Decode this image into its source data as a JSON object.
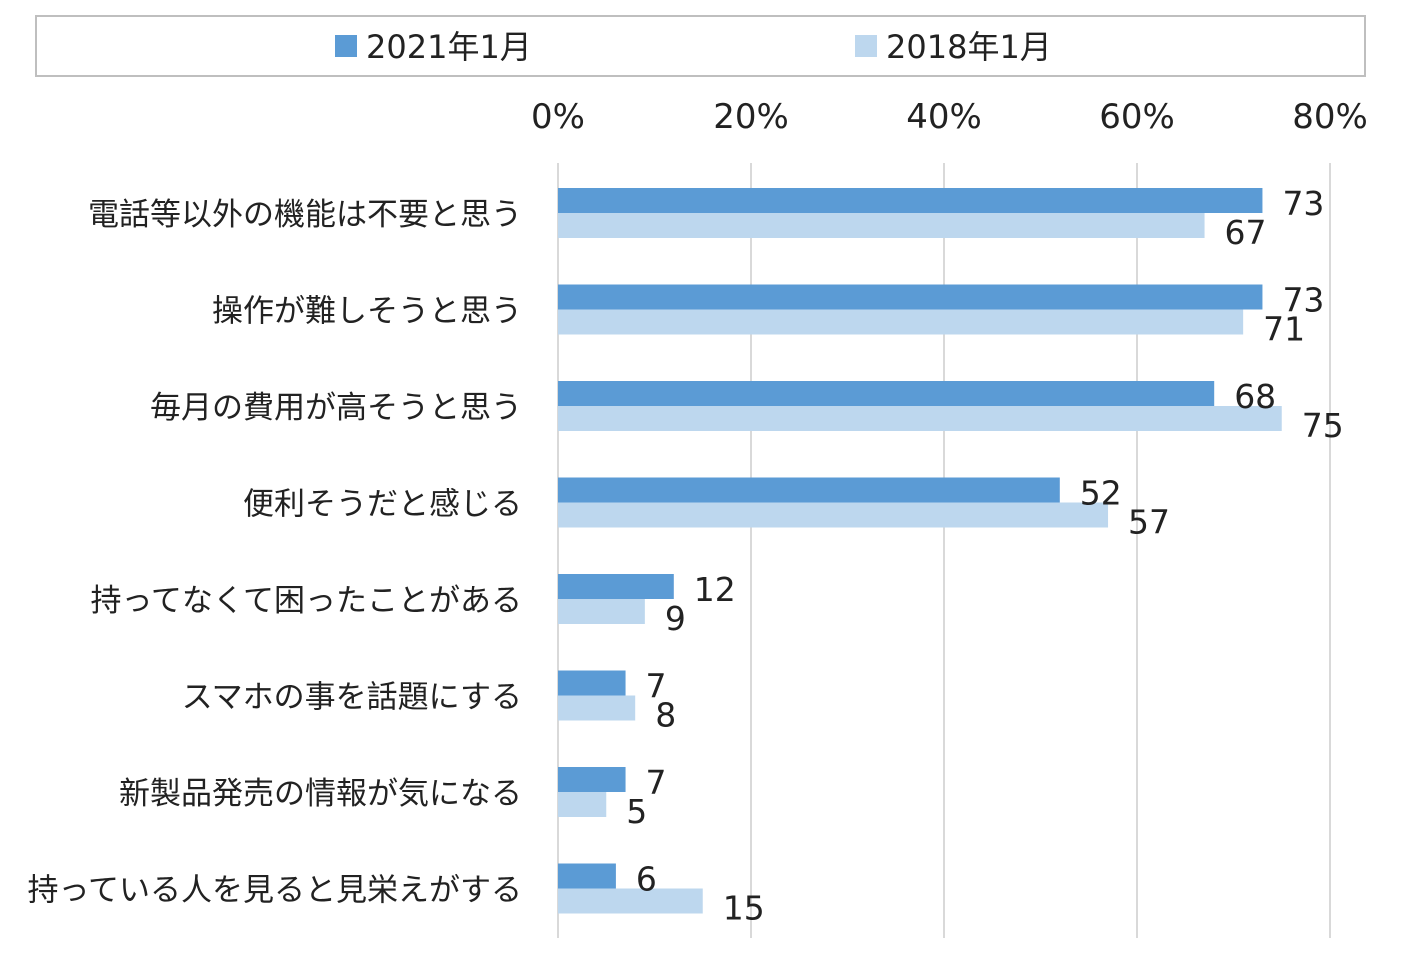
{
  "chart_data": {
    "type": "bar",
    "orientation": "horizontal",
    "categories": [
      "電話等以外の機能は不要と思う",
      "操作が難しそうと思う",
      "毎月の費用が高そうと思う",
      "便利そうだと感じる",
      "持ってなくて困ったことがある",
      "スマホの事を話題にする",
      "新製品発売の情報が気になる",
      "持っている人を見ると見栄えがする"
    ],
    "series": [
      {
        "name": "2021年1月",
        "color": "#5b9bd5",
        "values": [
          73,
          73,
          68,
          52,
          12,
          7,
          7,
          6
        ]
      },
      {
        "name": "2018年1月",
        "color": "#bdd7ee",
        "values": [
          67,
          71,
          75,
          57,
          9,
          8,
          5,
          15
        ]
      }
    ],
    "x_ticks": [
      "0%",
      "20%",
      "40%",
      "60%",
      "80%"
    ],
    "xlim": [
      0,
      80
    ],
    "grid": true,
    "legend_position": "top"
  }
}
